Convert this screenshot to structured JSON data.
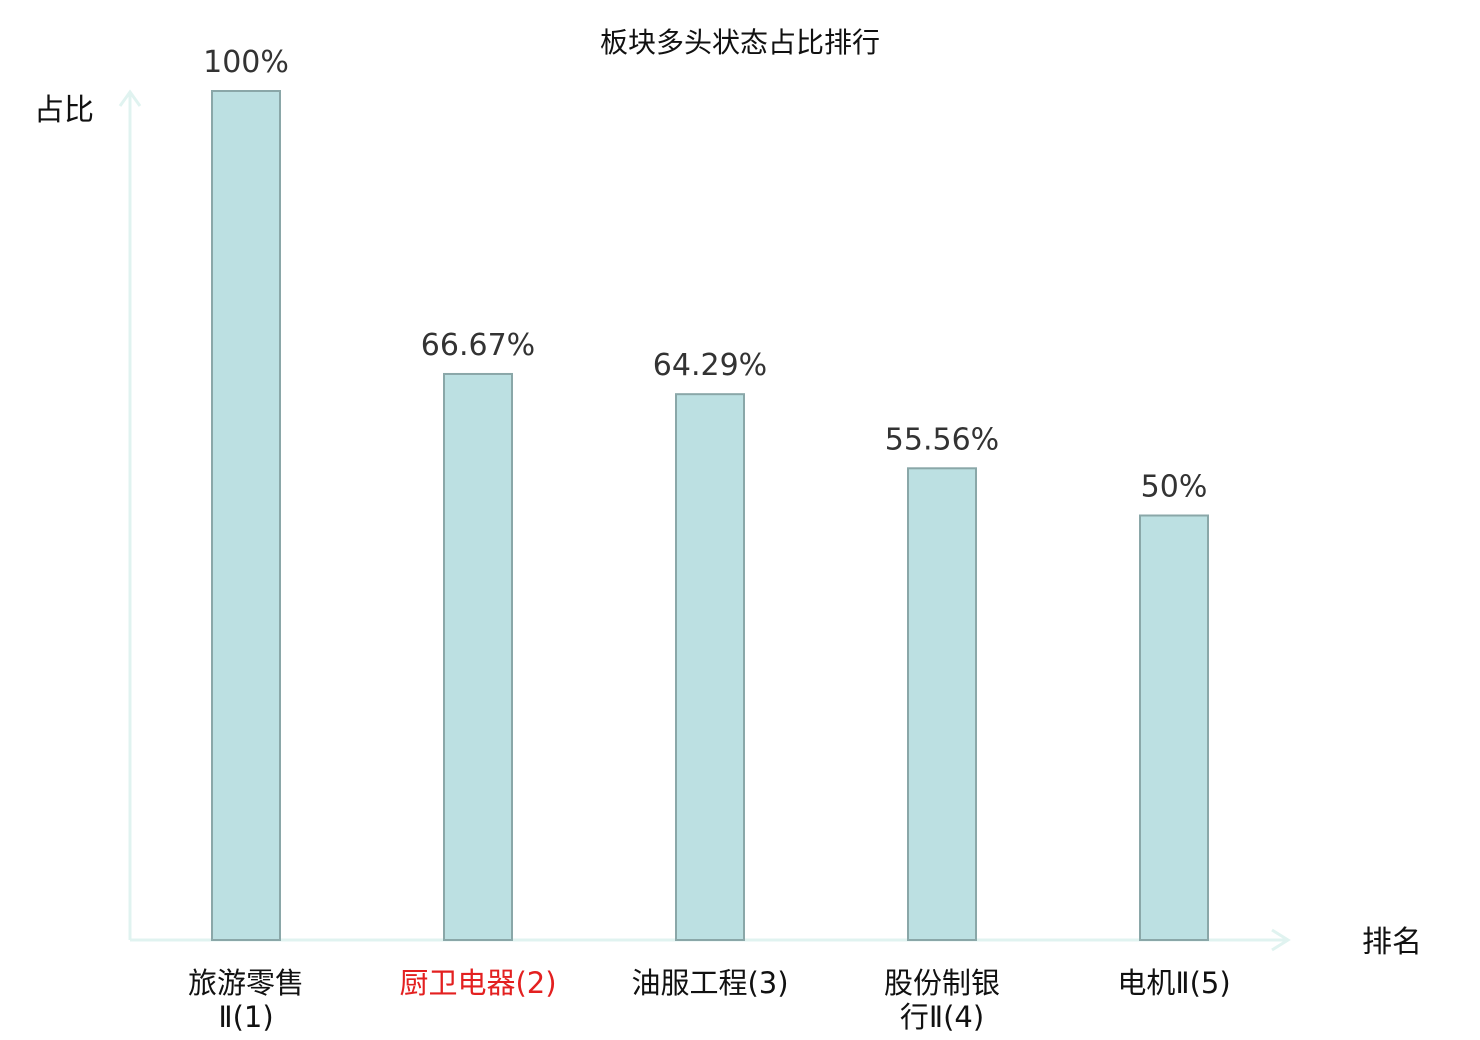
{
  "chart_data": {
    "type": "bar",
    "title": "板块多头状态占比排行",
    "ylabel": "占比",
    "xlabel": "排名",
    "ylim": [
      0,
      100
    ],
    "value_unit": "%",
    "grid": false,
    "categories": [
      {
        "lines": [
          "旅游零售",
          "Ⅱ(1)"
        ],
        "highlight": false
      },
      {
        "lines": [
          "厨卫电器(2)"
        ],
        "highlight": true
      },
      {
        "lines": [
          "油服工程(3)"
        ],
        "highlight": false
      },
      {
        "lines": [
          "股份制银",
          "行Ⅱ(4)"
        ],
        "highlight": false
      },
      {
        "lines": [
          "电机Ⅱ(5)"
        ],
        "highlight": false
      }
    ],
    "values": [
      100,
      66.67,
      64.29,
      55.56,
      50
    ],
    "value_labels": [
      "100%",
      "66.67%",
      "64.29%",
      "55.56%",
      "50%"
    ],
    "colors": {
      "bar_fill": "#bce0e2",
      "bar_stroke": "#8aa7a8",
      "axis": "#e0f3f0",
      "highlight_text": "#e32020"
    }
  }
}
